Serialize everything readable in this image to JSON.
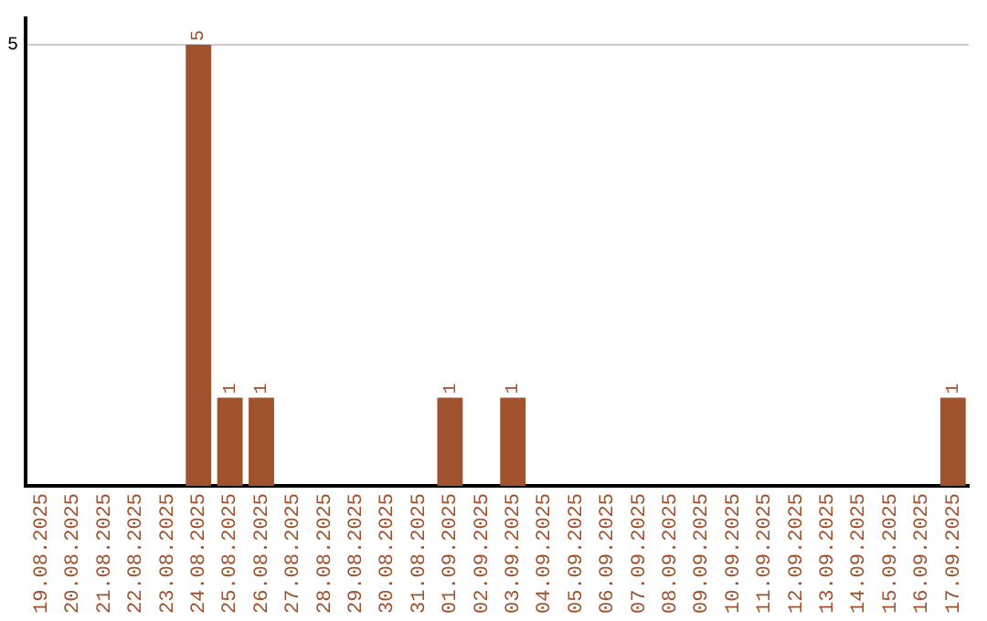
{
  "chart_data": {
    "type": "bar",
    "categories": [
      "19.08.2025",
      "20.08.2025",
      "21.08.2025",
      "22.08.2025",
      "23.08.2025",
      "24.08.2025",
      "25.08.2025",
      "26.08.2025",
      "27.08.2025",
      "28.08.2025",
      "29.08.2025",
      "30.08.2025",
      "31.08.2025",
      "01.09.2025",
      "02.09.2025",
      "03.09.2025",
      "04.09.2025",
      "05.09.2025",
      "06.09.2025",
      "07.09.2025",
      "08.09.2025",
      "09.09.2025",
      "10.09.2025",
      "11.09.2025",
      "12.09.2025",
      "13.09.2025",
      "14.09.2025",
      "15.09.2025",
      "16.09.2025",
      "17.09.2025"
    ],
    "values": [
      0,
      0,
      0,
      0,
      0,
      5,
      1,
      1,
      0,
      0,
      0,
      0,
      0,
      1,
      0,
      1,
      0,
      0,
      0,
      0,
      0,
      0,
      0,
      0,
      0,
      0,
      0,
      0,
      0,
      1
    ],
    "value_labels": [
      null,
      null,
      null,
      null,
      null,
      "5",
      "1",
      "1",
      null,
      null,
      null,
      null,
      null,
      "1",
      null,
      "1",
      null,
      null,
      null,
      null,
      null,
      null,
      null,
      null,
      null,
      null,
      null,
      null,
      null,
      "1"
    ],
    "color": "#a0522d",
    "ylim": [
      0,
      5.3
    ],
    "yticks": [
      5
    ],
    "grid": "y",
    "legend": false
  }
}
